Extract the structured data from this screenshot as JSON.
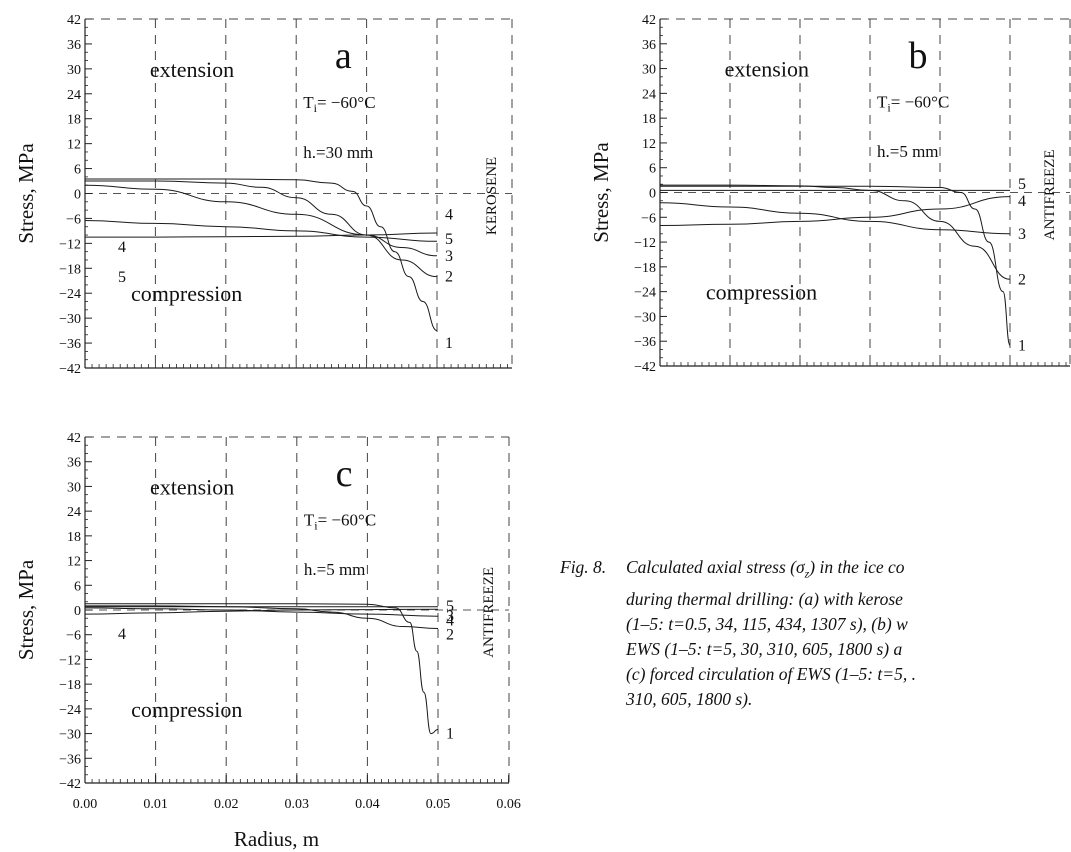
{
  "chart_data": [
    {
      "type": "line",
      "panel_letter": "a",
      "ylabel": "Stress,  MPa",
      "xlabel": "",
      "xlim": [
        0,
        0.05
      ],
      "ylim": [
        -42,
        42
      ],
      "yticks": [
        "42",
        "36",
        "30",
        "24",
        "18",
        "12",
        "6",
        "0",
        "-6",
        "-12",
        "-18",
        "-24",
        "-30",
        "-36",
        "-42"
      ],
      "xticks": [],
      "annotations": {
        "upper": "extension",
        "lower": "compression",
        "ti": "T",
        "ti_sub": "i",
        "ti_val": "= −60°C",
        "h": "h.=30  mm",
        "fluid": "KEROSENE"
      },
      "series": [
        {
          "name": "1",
          "label_y": -36,
          "x": [
            0.0,
            0.01,
            0.02,
            0.03,
            0.035,
            0.038,
            0.04,
            0.042,
            0.044,
            0.046,
            0.048,
            0.05
          ],
          "y": [
            3.5,
            3.5,
            3.5,
            3.3,
            2.5,
            0.5,
            -3,
            -8,
            -14,
            -20,
            -26,
            -33
          ]
        },
        {
          "name": "2",
          "label_y": -20,
          "x": [
            0.0,
            0.01,
            0.02,
            0.025,
            0.03,
            0.035,
            0.04,
            0.045,
            0.05
          ],
          "y": [
            3,
            3,
            2.5,
            1.5,
            -1,
            -5,
            -10,
            -16,
            -20
          ]
        },
        {
          "name": "3",
          "label_y": -15,
          "x": [
            0.0,
            0.01,
            0.02,
            0.03,
            0.04,
            0.045,
            0.05
          ],
          "y": [
            2,
            1,
            -2,
            -5,
            -10,
            -13,
            -15
          ]
        },
        {
          "name": "4",
          "label_y": -5,
          "x": [
            0.0,
            0.01,
            0.02,
            0.03,
            0.04,
            0.05
          ],
          "y": [
            -6.5,
            -7.2,
            -8,
            -9,
            -10.5,
            -11.5
          ]
        },
        {
          "name": "5",
          "label_y": -11,
          "x": [
            0.0,
            0.01,
            0.02,
            0.03,
            0.04,
            0.05
          ],
          "y": [
            -10.5,
            -10.5,
            -10.4,
            -10.3,
            -10,
            -9.5
          ]
        }
      ]
    },
    {
      "type": "line",
      "panel_letter": "b",
      "ylabel": "Stress,  MPa",
      "xlabel": "",
      "xlim": [
        0,
        0.05
      ],
      "ylim": [
        -42,
        42
      ],
      "yticks": [
        "42",
        "36",
        "30",
        "24",
        "18",
        "12",
        "6",
        "0",
        "-6",
        "-12",
        "-18",
        "-24",
        "-30",
        "-36",
        "-42"
      ],
      "xticks": [],
      "annotations": {
        "upper": "extension",
        "lower": "compression",
        "ti": "T",
        "ti_sub": "i",
        "ti_val": "= −60°C",
        "h": "h.=5  mm",
        "fluid": "ANTIFREEZE"
      },
      "series": [
        {
          "name": "1",
          "label_y": -37,
          "x": [
            0.0,
            0.01,
            0.02,
            0.03,
            0.04,
            0.043,
            0.045,
            0.047,
            0.049,
            0.05
          ],
          "y": [
            1.5,
            1.5,
            1.5,
            1.5,
            1.2,
            0,
            -4,
            -12,
            -24,
            -37
          ]
        },
        {
          "name": "2",
          "label_y": -21,
          "x": [
            0.0,
            0.01,
            0.02,
            0.025,
            0.03,
            0.035,
            0.04,
            0.045,
            0.05
          ],
          "y": [
            1.8,
            1.8,
            1.6,
            1.2,
            0.5,
            -2,
            -7,
            -13,
            -21
          ]
        },
        {
          "name": "3",
          "label_y": -10,
          "x": [
            0.0,
            0.01,
            0.02,
            0.03,
            0.04,
            0.05
          ],
          "y": [
            -2.5,
            -3.5,
            -5,
            -7,
            -9,
            -10
          ]
        },
        {
          "name": "4",
          "label_y": -2,
          "x": [
            0.0,
            0.01,
            0.02,
            0.03,
            0.04,
            0.05
          ],
          "y": [
            -8,
            -7.7,
            -7,
            -6,
            -4,
            -1
          ]
        },
        {
          "name": "5",
          "label_y": 2,
          "x": [
            0.0,
            0.01,
            0.02,
            0.03,
            0.04,
            0.05
          ],
          "y": [
            0.5,
            0.5,
            0.5,
            0.5,
            0.5,
            0.5
          ]
        }
      ]
    },
    {
      "type": "line",
      "panel_letter": "c",
      "ylabel": "Stress,  MPa",
      "xlabel": "Radius,  m",
      "xlim": [
        0,
        0.06
      ],
      "ylim": [
        -42,
        42
      ],
      "yticks": [
        "42",
        "36",
        "30",
        "24",
        "18",
        "12",
        "6",
        "0",
        "-6",
        "-12",
        "-18",
        "-24",
        "-30",
        "-36",
        "-42"
      ],
      "xticks": [
        "0.00",
        "0.01",
        "0.02",
        "0.03",
        "0.04",
        "0.05",
        "0.06"
      ],
      "annotations": {
        "upper": "extension",
        "lower": "compression",
        "ti": "T",
        "ti_sub": "i",
        "ti_val": "= −60°C",
        "h": "h.=5  mm",
        "fluid": "ANTIFREEZE"
      },
      "series": [
        {
          "name": "1",
          "label_y": -30,
          "x": [
            0.0,
            0.01,
            0.02,
            0.03,
            0.04,
            0.044,
            0.046,
            0.047,
            0.048,
            0.049,
            0.05
          ],
          "y": [
            1.5,
            1.5,
            1.5,
            1.5,
            1.4,
            0.5,
            -3,
            -10,
            -20,
            -30,
            -29
          ]
        },
        {
          "name": "2",
          "label_y": -6,
          "x": [
            0.0,
            0.01,
            0.02,
            0.03,
            0.035,
            0.04,
            0.045,
            0.05
          ],
          "y": [
            1,
            1,
            0.8,
            0.3,
            -0.5,
            -2,
            -4,
            -4.5
          ]
        },
        {
          "name": "3",
          "label_y": -1.5,
          "x": [
            0.0,
            0.01,
            0.02,
            0.03,
            0.04,
            0.05
          ],
          "y": [
            0.5,
            0.3,
            0,
            -0.5,
            -1,
            -1.5
          ]
        },
        {
          "name": "4",
          "label_y": -2.5,
          "x": [
            0.0,
            0.01,
            0.02,
            0.03,
            0.04,
            0.05
          ],
          "y": [
            -1,
            -0.7,
            -0.3,
            0,
            0.1,
            0.2
          ]
        },
        {
          "name": "5",
          "label_y": 1,
          "x": [
            0.0,
            0.01,
            0.02,
            0.03,
            0.04,
            0.05
          ],
          "y": [
            0.8,
            0.8,
            0.8,
            0.8,
            0.8,
            0.8
          ]
        }
      ]
    }
  ],
  "caption": {
    "number": "Fig. 8.",
    "lines": [
      "Calculated axial stress (σ",
      "during thermal drilling:  (a) with kerose",
      "(1–5:  t=0.5, 34, 115, 434, 1307 s), (b) w",
      "EWS (1–5:  t=5, 30, 310, 605, 1800 s) a",
      "(c) forced circulation of EWS (1–5:  t=5, .",
      "310, 605, 1800 s)."
    ],
    "sigma_sub": "z",
    "line1_tail": ") in the ice co"
  }
}
